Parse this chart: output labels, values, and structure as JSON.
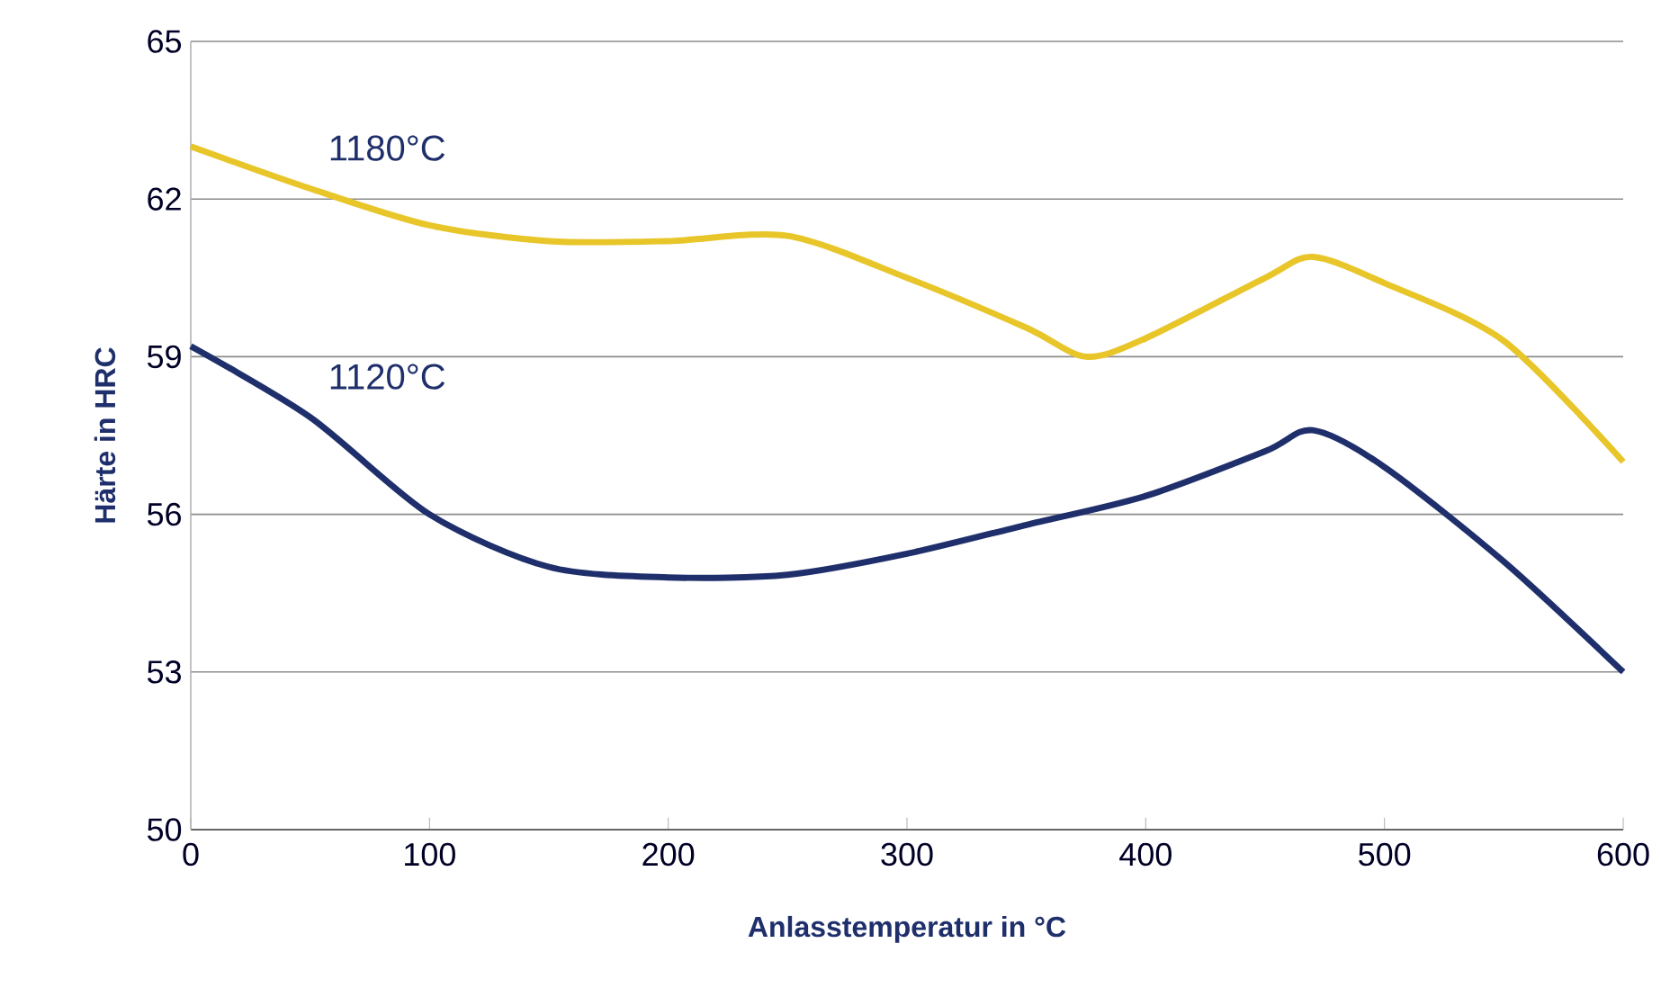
{
  "chart_data": {
    "type": "line",
    "xlabel": "Anlasstemperatur in °C",
    "ylabel": "Härte in HRC",
    "x": [
      0,
      50,
      100,
      150,
      200,
      250,
      300,
      350,
      375,
      400,
      450,
      470,
      500,
      550,
      600
    ],
    "series": [
      {
        "name": "1180°C",
        "color": "#e8c62a",
        "values": [
          63.0,
          62.2,
          61.5,
          61.2,
          61.2,
          61.3,
          60.5,
          59.55,
          59.0,
          59.35,
          60.5,
          60.9,
          60.4,
          59.3,
          57.0
        ]
      },
      {
        "name": "1120°C",
        "color": "#1f2f6b",
        "x": [
          0,
          50,
          100,
          150,
          200,
          250,
          300,
          350,
          400,
          450,
          470,
          500,
          550,
          600
        ],
        "values": [
          59.2,
          57.85,
          56.0,
          55.0,
          54.8,
          54.85,
          55.25,
          55.8,
          56.35,
          57.2,
          57.6,
          56.9,
          55.1,
          53.0
        ]
      }
    ],
    "xlim": [
      0,
      600
    ],
    "xticks": [
      0,
      100,
      200,
      300,
      400,
      500,
      600
    ],
    "ylim": [
      50,
      65
    ],
    "yticks": [
      50,
      53,
      56,
      59,
      62,
      65
    ],
    "grid": "y",
    "legend": false,
    "marker": "none",
    "line_style": "solid"
  }
}
